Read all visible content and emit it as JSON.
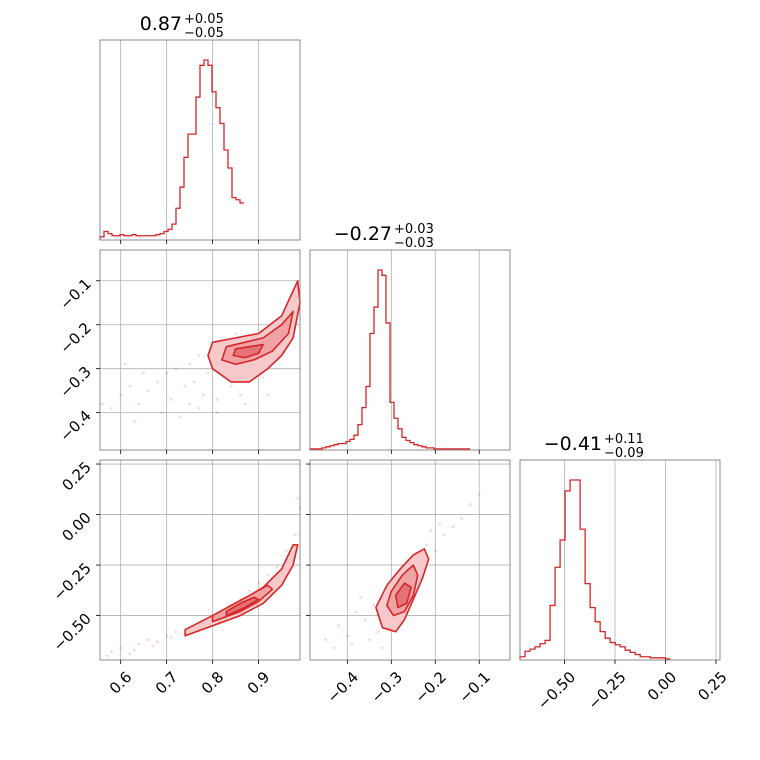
{
  "chart_data": {
    "type": "corner",
    "color": "#d62728",
    "parameters": [
      {
        "title_median": "0.87",
        "title_plus": "+0.05",
        "title_minus": "−0.05",
        "range": [
          0.555,
          0.99
        ],
        "ticks": [
          0.6,
          0.7,
          0.8,
          0.9
        ],
        "tick_labels": [
          "0.6",
          "0.7",
          "0.8",
          "0.9"
        ],
        "hist_edges_start": 0.555,
        "hist_edge_step": 0.0087,
        "hist": [
          3,
          8,
          6,
          4,
          4,
          5,
          4,
          4,
          5,
          4,
          4,
          4,
          4,
          4,
          5,
          6,
          8,
          10,
          15,
          30,
          50,
          78,
          100,
          100,
          135,
          165,
          170,
          165,
          140,
          125,
          110,
          85,
          68,
          40,
          38,
          35
        ]
      },
      {
        "title_median": "−0.27",
        "title_plus": "+0.03",
        "title_minus": "−0.03",
        "range": [
          -0.485,
          -0.03
        ],
        "ticks": [
          -0.4,
          -0.3,
          -0.2,
          -0.1
        ],
        "tick_labels": [
          "−0.4",
          "−0.3",
          "−0.2",
          "−0.1"
        ],
        "hist_edges_start": -0.485,
        "hist_edge_step": 0.0091,
        "hist": [
          1,
          1,
          1,
          2,
          3,
          4,
          5,
          6,
          6,
          8,
          10,
          14,
          24,
          40,
          60,
          110,
          135,
          170,
          165,
          120,
          45,
          30,
          20,
          12,
          9,
          7,
          5,
          4,
          3,
          2,
          2,
          1,
          1,
          1,
          1,
          1,
          1,
          1,
          1,
          1
        ]
      },
      {
        "title_median": "−0.41",
        "title_plus": "+0.11",
        "title_minus": "−0.09",
        "range": [
          -0.72,
          0.27
        ],
        "ticks": [
          -0.5,
          -0.25,
          0.0,
          0.25
        ],
        "tick_labels": [
          "−0.50",
          "−0.25",
          "0.00",
          "0.25"
        ],
        "hist_edges_start": -0.72,
        "hist_edge_step": 0.0248,
        "hist": [
          3,
          8,
          10,
          12,
          15,
          18,
          50,
          85,
          110,
          155,
          165,
          165,
          120,
          70,
          48,
          35,
          26,
          20,
          16,
          14,
          12,
          9,
          7,
          5,
          3,
          3,
          2,
          2,
          2,
          1
        ]
      }
    ],
    "pairs": [
      {
        "x": 0,
        "y": 1,
        "points": [
          [
            0.58,
            -0.39
          ],
          [
            0.6,
            -0.36
          ],
          [
            0.62,
            -0.34
          ],
          [
            0.64,
            -0.38
          ],
          [
            0.66,
            -0.35
          ],
          [
            0.68,
            -0.33
          ],
          [
            0.7,
            -0.31
          ],
          [
            0.71,
            -0.37
          ],
          [
            0.72,
            -0.3
          ],
          [
            0.74,
            -0.34
          ],
          [
            0.75,
            -0.29
          ],
          [
            0.76,
            -0.33
          ],
          [
            0.77,
            -0.27
          ],
          [
            0.78,
            -0.36
          ],
          [
            0.79,
            -0.31
          ],
          [
            0.8,
            -0.3
          ],
          [
            0.81,
            -0.4
          ],
          [
            0.82,
            -0.25
          ],
          [
            0.83,
            -0.32
          ],
          [
            0.84,
            -0.34
          ],
          [
            0.85,
            -0.22
          ],
          [
            0.86,
            -0.36
          ],
          [
            0.88,
            -0.3
          ],
          [
            0.9,
            -0.24
          ],
          [
            0.91,
            -0.32
          ],
          [
            0.93,
            -0.28
          ],
          [
            0.95,
            -0.25
          ],
          [
            0.97,
            -0.2
          ],
          [
            0.98,
            -0.15
          ],
          [
            0.63,
            -0.42
          ],
          [
            0.69,
            -0.4
          ],
          [
            0.73,
            -0.41
          ],
          [
            0.77,
            -0.39
          ],
          [
            0.81,
            -0.37
          ],
          [
            0.65,
            -0.31
          ],
          [
            0.61,
            -0.29
          ],
          [
            0.56,
            -0.38
          ],
          [
            0.92,
            -0.36
          ],
          [
            0.87,
            -0.38
          ],
          [
            0.75,
            -0.38
          ]
        ],
        "contours": [
          [
            [
              0.8,
              -0.24
            ],
            [
              0.85,
              -0.23
            ],
            [
              0.9,
              -0.22
            ],
            [
              0.95,
              -0.18
            ],
            [
              0.985,
              -0.1
            ],
            [
              0.99,
              -0.15
            ],
            [
              0.975,
              -0.23
            ],
            [
              0.95,
              -0.27
            ],
            [
              0.92,
              -0.3
            ],
            [
              0.88,
              -0.33
            ],
            [
              0.84,
              -0.33
            ],
            [
              0.8,
              -0.3
            ],
            [
              0.79,
              -0.27
            ]
          ],
          [
            [
              0.83,
              -0.25
            ],
            [
              0.87,
              -0.24
            ],
            [
              0.91,
              -0.23
            ],
            [
              0.95,
              -0.2
            ],
            [
              0.975,
              -0.17
            ],
            [
              0.965,
              -0.22
            ],
            [
              0.93,
              -0.26
            ],
            [
              0.89,
              -0.28
            ],
            [
              0.85,
              -0.29
            ],
            [
              0.82,
              -0.28
            ]
          ],
          [
            [
              0.85,
              -0.255
            ],
            [
              0.88,
              -0.25
            ],
            [
              0.91,
              -0.245
            ],
            [
              0.9,
              -0.265
            ],
            [
              0.87,
              -0.275
            ],
            [
              0.845,
              -0.27
            ]
          ]
        ]
      },
      {
        "x": 0,
        "y": 2,
        "points": [
          [
            0.58,
            -0.68
          ],
          [
            0.6,
            -0.66
          ],
          [
            0.62,
            -0.69
          ],
          [
            0.64,
            -0.64
          ],
          [
            0.66,
            -0.62
          ],
          [
            0.68,
            -0.63
          ],
          [
            0.7,
            -0.6
          ],
          [
            0.72,
            -0.58
          ],
          [
            0.74,
            -0.59
          ],
          [
            0.76,
            -0.55
          ],
          [
            0.78,
            -0.53
          ],
          [
            0.8,
            -0.5
          ],
          [
            0.82,
            -0.48
          ],
          [
            0.84,
            -0.45
          ],
          [
            0.86,
            -0.42
          ],
          [
            0.88,
            -0.38
          ],
          [
            0.9,
            -0.34
          ],
          [
            0.92,
            -0.3
          ],
          [
            0.94,
            -0.26
          ],
          [
            0.96,
            -0.18
          ],
          [
            0.98,
            -0.1
          ],
          [
            0.99,
            0.03
          ],
          [
            0.985,
            0.08
          ],
          [
            0.67,
            -0.65
          ],
          [
            0.71,
            -0.61
          ],
          [
            0.63,
            -0.67
          ],
          [
            0.57,
            -0.7
          ],
          [
            0.75,
            -0.57
          ],
          [
            0.79,
            -0.52
          ],
          [
            0.83,
            -0.47
          ]
        ],
        "contours": [
          [
            [
              0.74,
              -0.6
            ],
            [
              0.8,
              -0.55
            ],
            [
              0.86,
              -0.5
            ],
            [
              0.91,
              -0.44
            ],
            [
              0.95,
              -0.35
            ],
            [
              0.975,
              -0.25
            ],
            [
              0.985,
              -0.15
            ],
            [
              0.975,
              -0.15
            ],
            [
              0.95,
              -0.27
            ],
            [
              0.91,
              -0.36
            ],
            [
              0.86,
              -0.43
            ],
            [
              0.8,
              -0.5
            ],
            [
              0.74,
              -0.57
            ]
          ],
          [
            [
              0.8,
              -0.53
            ],
            [
              0.86,
              -0.48
            ],
            [
              0.9,
              -0.43
            ],
            [
              0.93,
              -0.37
            ],
            [
              0.92,
              -0.35
            ],
            [
              0.88,
              -0.4
            ],
            [
              0.84,
              -0.45
            ],
            [
              0.8,
              -0.5
            ]
          ],
          [
            [
              0.83,
              -0.5
            ],
            [
              0.87,
              -0.46
            ],
            [
              0.9,
              -0.42
            ],
            [
              0.89,
              -0.41
            ],
            [
              0.86,
              -0.44
            ],
            [
              0.83,
              -0.48
            ]
          ]
        ]
      },
      {
        "x": 1,
        "y": 2,
        "points": [
          [
            -0.45,
            -0.62
          ],
          [
            -0.42,
            -0.55
          ],
          [
            -0.4,
            -0.6
          ],
          [
            -0.38,
            -0.48
          ],
          [
            -0.36,
            -0.52
          ],
          [
            -0.34,
            -0.45
          ],
          [
            -0.33,
            -0.58
          ],
          [
            -0.31,
            -0.38
          ],
          [
            -0.3,
            -0.5
          ],
          [
            -0.29,
            -0.3
          ],
          [
            -0.28,
            -0.42
          ],
          [
            -0.27,
            -0.35
          ],
          [
            -0.26,
            -0.25
          ],
          [
            -0.25,
            -0.32
          ],
          [
            -0.24,
            -0.2
          ],
          [
            -0.23,
            -0.28
          ],
          [
            -0.22,
            -0.15
          ],
          [
            -0.2,
            -0.18
          ],
          [
            -0.18,
            -0.1
          ],
          [
            -0.16,
            -0.06
          ],
          [
            -0.14,
            -0.02
          ],
          [
            -0.12,
            0.05
          ],
          [
            -0.1,
            0.1
          ],
          [
            -0.43,
            -0.66
          ],
          [
            -0.39,
            -0.64
          ],
          [
            -0.35,
            -0.62
          ],
          [
            -0.32,
            -0.66
          ],
          [
            -0.37,
            -0.41
          ],
          [
            -0.21,
            -0.08
          ],
          [
            -0.19,
            -0.05
          ]
        ],
        "contours": [
          [
            [
              -0.31,
              -0.35
            ],
            [
              -0.28,
              -0.27
            ],
            [
              -0.25,
              -0.2
            ],
            [
              -0.225,
              -0.17
            ],
            [
              -0.215,
              -0.22
            ],
            [
              -0.23,
              -0.32
            ],
            [
              -0.25,
              -0.42
            ],
            [
              -0.27,
              -0.52
            ],
            [
              -0.29,
              -0.58
            ],
            [
              -0.32,
              -0.56
            ],
            [
              -0.335,
              -0.46
            ]
          ],
          [
            [
              -0.3,
              -0.38
            ],
            [
              -0.275,
              -0.3
            ],
            [
              -0.25,
              -0.25
            ],
            [
              -0.24,
              -0.3
            ],
            [
              -0.25,
              -0.4
            ],
            [
              -0.27,
              -0.48
            ],
            [
              -0.295,
              -0.5
            ],
            [
              -0.31,
              -0.45
            ]
          ],
          [
            [
              -0.29,
              -0.4
            ],
            [
              -0.27,
              -0.34
            ],
            [
              -0.255,
              -0.36
            ],
            [
              -0.265,
              -0.44
            ],
            [
              -0.285,
              -0.46
            ]
          ]
        ]
      }
    ]
  }
}
